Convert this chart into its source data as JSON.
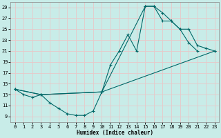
{
  "xlabel": "Humidex (Indice chaleur)",
  "bg_color": "#c8ece8",
  "grid_color": "#e8c8c8",
  "line_color": "#006868",
  "xlim": [
    -0.5,
    23.5
  ],
  "ylim": [
    8,
    30
  ],
  "xticks": [
    0,
    1,
    2,
    3,
    4,
    5,
    6,
    7,
    8,
    9,
    10,
    11,
    12,
    13,
    14,
    15,
    16,
    17,
    18,
    19,
    20,
    21,
    22,
    23
  ],
  "yticks": [
    9,
    11,
    13,
    15,
    17,
    19,
    21,
    23,
    25,
    27,
    29
  ],
  "series": [
    {
      "x": [
        0,
        1,
        2,
        3,
        4,
        5,
        6,
        7,
        8,
        9,
        10,
        11,
        12,
        13,
        14,
        15,
        16,
        17,
        18,
        19,
        20,
        21
      ],
      "y": [
        14,
        13,
        12.5,
        13,
        11.5,
        10.5,
        9.5,
        9.2,
        9.2,
        10.0,
        13.5,
        18.5,
        21.0,
        24.0,
        21.0,
        29.2,
        29.2,
        28.0,
        26.5,
        25.0,
        22.5,
        21.0
      ]
    },
    {
      "x": [
        0,
        3,
        10,
        15,
        16,
        17,
        18,
        19,
        20,
        21,
        22,
        23
      ],
      "y": [
        14,
        13,
        13.5,
        29.2,
        29.2,
        26.5,
        26.5,
        25.0,
        25.0,
        22.0,
        21.5,
        21.0
      ]
    },
    {
      "x": [
        0,
        3,
        10,
        23
      ],
      "y": [
        14,
        13,
        13.5,
        21.0
      ]
    }
  ]
}
